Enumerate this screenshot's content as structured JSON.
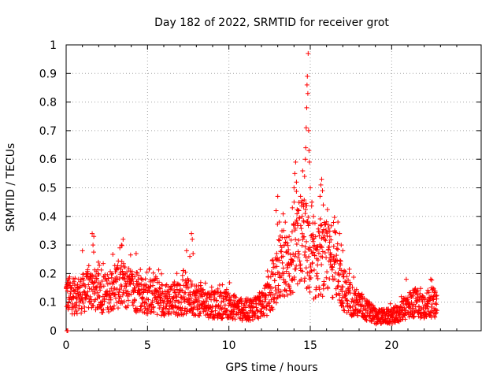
{
  "chart_data": {
    "type": "scatter",
    "title": "Day 182 of 2022, SRMTID for receiver grot",
    "xlabel": "GPS time / hours",
    "ylabel": "SRMTID / TECUs",
    "xlim": [
      0,
      25.5
    ],
    "ylim": [
      0,
      1
    ],
    "xticks": [
      0,
      5,
      10,
      15,
      20
    ],
    "xtick_labels": [
      "0",
      "5",
      "10",
      "15",
      "20"
    ],
    "yticks": [
      0,
      0.1,
      0.2,
      0.3,
      0.4,
      0.5,
      0.6,
      0.7,
      0.8,
      0.9,
      1
    ],
    "ytick_labels": [
      "0",
      "0.1",
      "0.2",
      "0.3",
      "0.4",
      "0.5",
      "0.6",
      "0.7",
      "0.8",
      "0.9",
      "1"
    ],
    "grid": true,
    "marker": "+",
    "marker_color": "#ff0000",
    "series": [
      {
        "name": "SRMTID",
        "trend": [
          [
            0.0,
            0.13
          ],
          [
            0.5,
            0.12
          ],
          [
            1.0,
            0.13
          ],
          [
            1.6,
            0.15
          ],
          [
            2.0,
            0.13
          ],
          [
            2.5,
            0.13
          ],
          [
            3.0,
            0.16
          ],
          [
            3.5,
            0.16
          ],
          [
            4.0,
            0.14
          ],
          [
            4.5,
            0.13
          ],
          [
            5.0,
            0.12
          ],
          [
            5.5,
            0.12
          ],
          [
            6.0,
            0.11
          ],
          [
            6.5,
            0.11
          ],
          [
            7.0,
            0.11
          ],
          [
            7.5,
            0.12
          ],
          [
            8.0,
            0.11
          ],
          [
            8.5,
            0.1
          ],
          [
            9.0,
            0.09
          ],
          [
            9.5,
            0.09
          ],
          [
            10.0,
            0.09
          ],
          [
            10.5,
            0.08
          ],
          [
            11.0,
            0.07
          ],
          [
            11.5,
            0.08
          ],
          [
            12.0,
            0.09
          ],
          [
            12.5,
            0.12
          ],
          [
            13.0,
            0.2
          ],
          [
            13.3,
            0.24
          ],
          [
            13.6,
            0.22
          ],
          [
            14.0,
            0.25
          ],
          [
            14.3,
            0.3
          ],
          [
            14.6,
            0.33
          ],
          [
            15.0,
            0.24
          ],
          [
            15.3,
            0.22
          ],
          [
            15.6,
            0.25
          ],
          [
            16.0,
            0.25
          ],
          [
            16.5,
            0.24
          ],
          [
            17.0,
            0.15
          ],
          [
            17.5,
            0.11
          ],
          [
            18.0,
            0.09
          ],
          [
            18.5,
            0.07
          ],
          [
            19.0,
            0.05
          ],
          [
            19.5,
            0.05
          ],
          [
            20.0,
            0.05
          ],
          [
            20.5,
            0.06
          ],
          [
            21.0,
            0.09
          ],
          [
            21.5,
            0.1
          ],
          [
            22.0,
            0.09
          ],
          [
            22.5,
            0.1
          ],
          [
            22.8,
            0.09
          ]
        ],
        "peaks": [
          [
            0.05,
            0.0
          ],
          [
            0.1,
            0.0
          ],
          [
            1.0,
            0.28
          ],
          [
            1.6,
            0.34
          ],
          [
            1.7,
            0.33
          ],
          [
            1.65,
            0.3
          ],
          [
            3.3,
            0.29
          ],
          [
            3.5,
            0.32
          ],
          [
            3.4,
            0.3
          ],
          [
            4.3,
            0.27
          ],
          [
            7.4,
            0.28
          ],
          [
            7.7,
            0.34
          ],
          [
            7.75,
            0.32
          ],
          [
            7.6,
            0.26
          ],
          [
            7.8,
            0.27
          ],
          [
            12.9,
            0.42
          ],
          [
            13.0,
            0.47
          ],
          [
            13.1,
            0.38
          ],
          [
            13.4,
            0.3
          ],
          [
            13.7,
            0.33
          ],
          [
            13.9,
            0.43
          ],
          [
            14.0,
            0.5
          ],
          [
            14.05,
            0.55
          ],
          [
            14.1,
            0.59
          ],
          [
            14.15,
            0.52
          ],
          [
            14.3,
            0.42
          ],
          [
            14.4,
            0.47
          ],
          [
            14.5,
            0.4
          ],
          [
            14.65,
            0.54
          ],
          [
            14.7,
            0.6
          ],
          [
            14.72,
            0.64
          ],
          [
            14.75,
            0.71
          ],
          [
            14.78,
            0.78
          ],
          [
            14.8,
            0.86
          ],
          [
            14.82,
            0.89
          ],
          [
            14.85,
            0.83
          ],
          [
            14.9,
            0.7
          ],
          [
            14.92,
            0.63
          ],
          [
            14.87,
            0.97
          ],
          [
            14.95,
            0.59
          ],
          [
            15.0,
            0.5
          ],
          [
            15.1,
            0.45
          ],
          [
            15.2,
            0.4
          ],
          [
            15.6,
            0.47
          ],
          [
            15.65,
            0.51
          ],
          [
            15.7,
            0.53
          ],
          [
            15.75,
            0.49
          ],
          [
            15.8,
            0.44
          ],
          [
            16.2,
            0.33
          ],
          [
            16.5,
            0.35
          ],
          [
            16.7,
            0.38
          ],
          [
            16.8,
            0.34
          ],
          [
            16.9,
            0.3
          ],
          [
            17.0,
            0.28
          ],
          [
            17.4,
            0.2
          ],
          [
            20.9,
            0.18
          ],
          [
            22.4,
            0.18
          ]
        ]
      }
    ]
  }
}
